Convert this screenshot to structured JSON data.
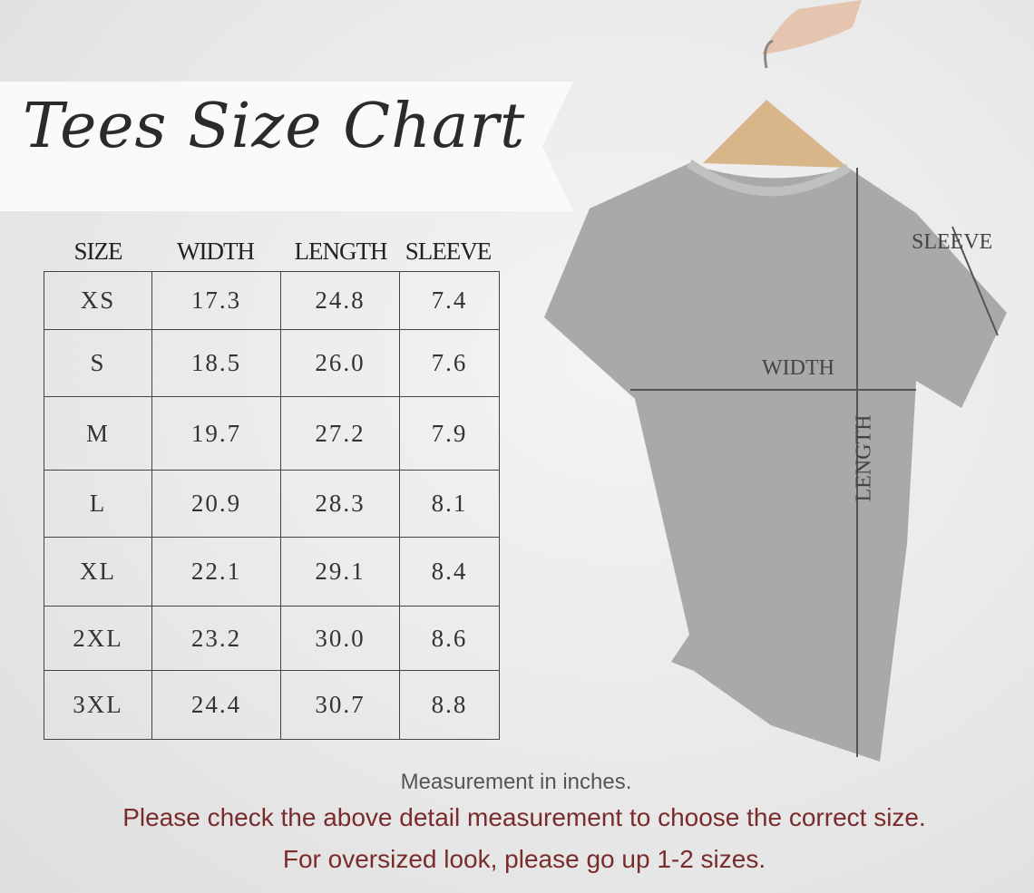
{
  "title": "Tees Size Chart",
  "table": {
    "headers": [
      "SIZE",
      "WIDTH",
      "LENGTH",
      "SLEEVE"
    ],
    "rows": [
      [
        "XS",
        "17.3",
        "24.8",
        "7.4"
      ],
      [
        "S",
        "18.5",
        "26.0",
        "7.6"
      ],
      [
        "M",
        "19.7",
        "27.2",
        "7.9"
      ],
      [
        "L",
        "20.9",
        "28.3",
        "8.1"
      ],
      [
        "XL",
        "22.1",
        "29.1",
        "8.4"
      ],
      [
        "2XL",
        "23.2",
        "30.0",
        "8.6"
      ],
      [
        "3XL",
        "24.4",
        "30.7",
        "8.8"
      ]
    ]
  },
  "diagram_labels": {
    "sleeve": "SLEEVE",
    "width": "WIDTH",
    "length": "LENGTH"
  },
  "footer": {
    "unit_note": "Measurement in inches.",
    "check_note": "Please check the above detail measurement to choose the correct size.",
    "oversize_note": "For oversized look,  please go up 1-2 sizes."
  },
  "colors": {
    "accent_text": "#7a2c2c",
    "shirt": "#a8a8a8"
  }
}
